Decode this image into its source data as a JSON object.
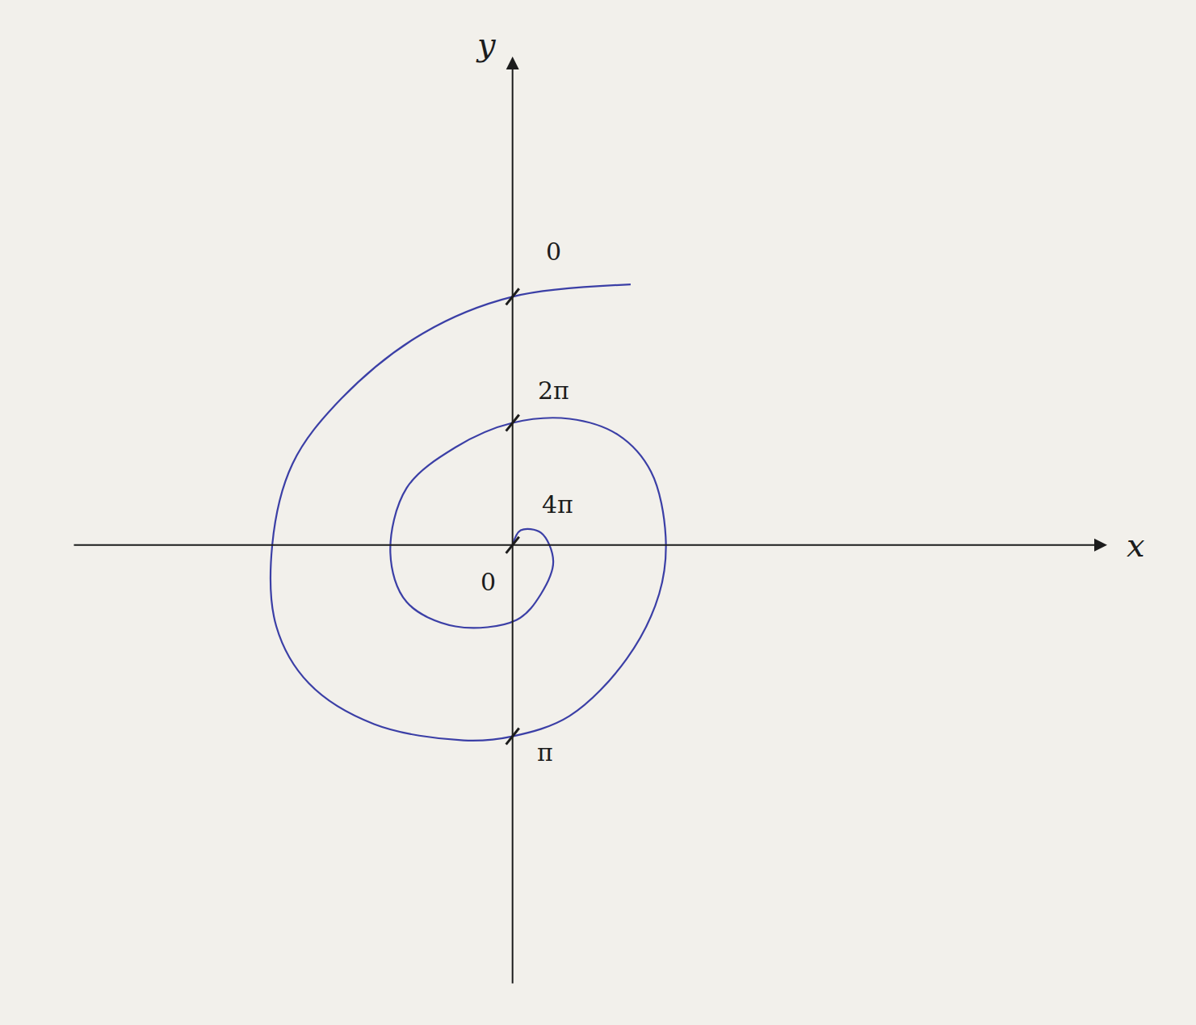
{
  "chart_data": {
    "type": "line",
    "x_label": "x",
    "y_label": "y",
    "color": "#3b3fa6",
    "tick_labels": false,
    "grid": false,
    "xlim": [
      -5.4,
      7.3
    ],
    "ylim": [
      -5.4,
      6.0
    ],
    "xticks": [],
    "yticks": [],
    "x": [
      1.45,
      0,
      -1.1,
      -2.1,
      -2.7,
      -2.95,
      -2.9,
      -2.5,
      -1.7,
      -0.6,
      0,
      0.7,
      1.4,
      1.8,
      1.88,
      1.7,
      1.3,
      0.7,
      0,
      -0.7,
      -1.3,
      -1.5,
      -1.3,
      -0.7,
      0.05,
      0.35,
      0.5,
      0.35,
      0.1,
      0
    ],
    "y": [
      3.2,
      3.05,
      2.6,
      1.8,
      1.0,
      0,
      -1.0,
      -1.7,
      -2.2,
      -2.4,
      -2.35,
      -2.1,
      -1.4,
      -0.6,
      0.1,
      0.9,
      1.35,
      1.55,
      1.5,
      1.2,
      0.7,
      -0.1,
      -0.7,
      -1.0,
      -0.92,
      -0.6,
      -0.2,
      0.15,
      0.18,
      0
    ],
    "annotations": [
      {
        "text": "0",
        "x": 0.5,
        "y": 3.6
      },
      {
        "text": "2π",
        "x": 0.5,
        "y": 1.9
      },
      {
        "text": "4π",
        "x": 0.55,
        "y": 0.5
      },
      {
        "text": "π",
        "x": 0.4,
        "y": -2.55
      },
      {
        "text": "0",
        "x": -0.3,
        "y": -0.45
      }
    ]
  }
}
